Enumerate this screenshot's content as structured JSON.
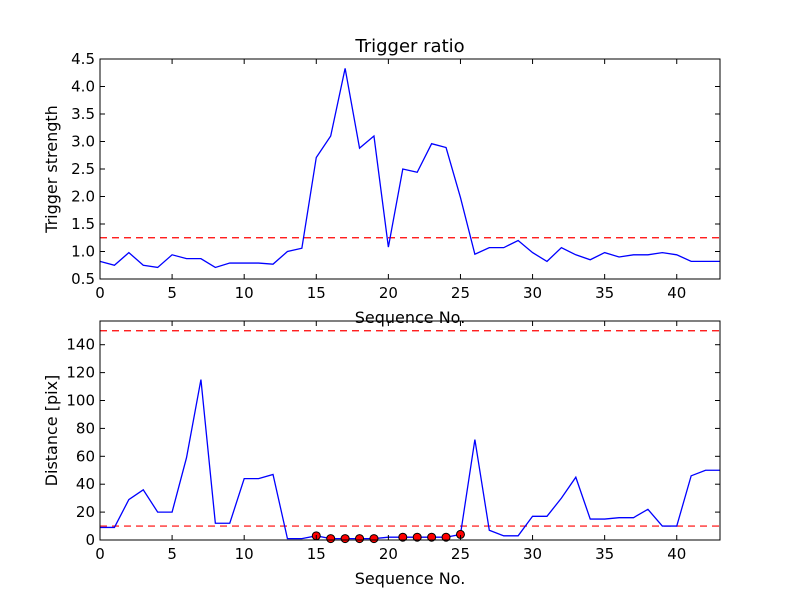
{
  "chart_data": [
    {
      "type": "line",
      "title": "Trigger ratio",
      "xlabel": "Sequence No.",
      "ylabel": "Trigger strength",
      "xlim": [
        0,
        43
      ],
      "ylim": [
        0.5,
        4.5
      ],
      "xticks": [
        0,
        5,
        10,
        15,
        20,
        25,
        30,
        35,
        40
      ],
      "yticks": [
        0.5,
        1.0,
        1.5,
        2.0,
        2.5,
        3.0,
        3.5,
        4.0,
        4.5
      ],
      "ytick_labels": [
        "0.5",
        "1.0",
        "1.5",
        "2.0",
        "2.5",
        "3.0",
        "3.5",
        "4.0",
        "4.5"
      ],
      "grid": false,
      "colors": {
        "line": "#0000ff",
        "threshold": "#ff0000"
      },
      "series": [
        {
          "style": "solid",
          "x": [
            0,
            1,
            2,
            3,
            4,
            5,
            6,
            7,
            8,
            9,
            10,
            11,
            12,
            13,
            14,
            15,
            16,
            17,
            18,
            19,
            20,
            21,
            22,
            23,
            24,
            25,
            26,
            27,
            28,
            29,
            30,
            31,
            32,
            33,
            34,
            35,
            36,
            37,
            38,
            39,
            40,
            41,
            42,
            43
          ],
          "y": [
            0.82,
            0.75,
            0.98,
            0.75,
            0.71,
            0.94,
            0.87,
            0.87,
            0.71,
            0.79,
            0.79,
            0.79,
            0.77,
            1.0,
            1.06,
            2.71,
            3.1,
            4.33,
            2.88,
            3.1,
            1.08,
            2.5,
            2.44,
            2.96,
            2.89,
            1.98,
            0.95,
            1.07,
            1.07,
            1.2,
            0.98,
            0.82,
            1.07,
            0.94,
            0.85,
            0.98,
            0.9,
            0.94,
            0.94,
            0.98,
            0.94,
            0.82,
            0.82,
            0.82
          ]
        }
      ],
      "threshold_lines": [
        1.25
      ]
    },
    {
      "type": "line",
      "title": "",
      "xlabel": "Sequence No.",
      "ylabel": "Distance [pix]",
      "xlim": [
        0,
        43
      ],
      "ylim": [
        0,
        157
      ],
      "xticks": [
        0,
        5,
        10,
        15,
        20,
        25,
        30,
        35,
        40
      ],
      "yticks": [
        0,
        20,
        40,
        60,
        80,
        100,
        120,
        140
      ],
      "ytick_labels": [
        "0",
        "20",
        "40",
        "60",
        "80",
        "100",
        "120",
        "140"
      ],
      "grid": false,
      "colors": {
        "line": "#0000ff",
        "threshold": "#ff0000",
        "marker_fill": "#ff0000",
        "marker_edge": "#000000"
      },
      "series": [
        {
          "style": "solid",
          "x": [
            0,
            1,
            2,
            3,
            4,
            5,
            6,
            7,
            8,
            9,
            10,
            11,
            12,
            13,
            14,
            15,
            16,
            17,
            18,
            19,
            20,
            21,
            22,
            23,
            24,
            25,
            26,
            27,
            28,
            29,
            30,
            31,
            32,
            33,
            34,
            35,
            36,
            37,
            38,
            39,
            40,
            41,
            42,
            43
          ],
          "y": [
            9,
            9,
            29,
            36,
            20,
            20,
            59,
            115,
            12,
            12,
            44,
            44,
            47,
            1,
            1,
            3,
            1,
            1,
            1,
            1,
            2,
            2,
            2,
            2,
            2,
            4,
            72,
            7,
            3,
            3,
            17,
            17,
            30,
            45,
            15,
            15,
            16,
            16,
            22,
            10,
            10,
            46,
            50,
            50
          ]
        }
      ],
      "markers": {
        "x": [
          15,
          16,
          17,
          18,
          19,
          21,
          22,
          23,
          24,
          25
        ],
        "y": [
          3,
          1,
          1,
          1,
          1,
          2,
          2,
          2,
          2,
          4
        ]
      },
      "threshold_lines": [
        10,
        150
      ]
    }
  ]
}
